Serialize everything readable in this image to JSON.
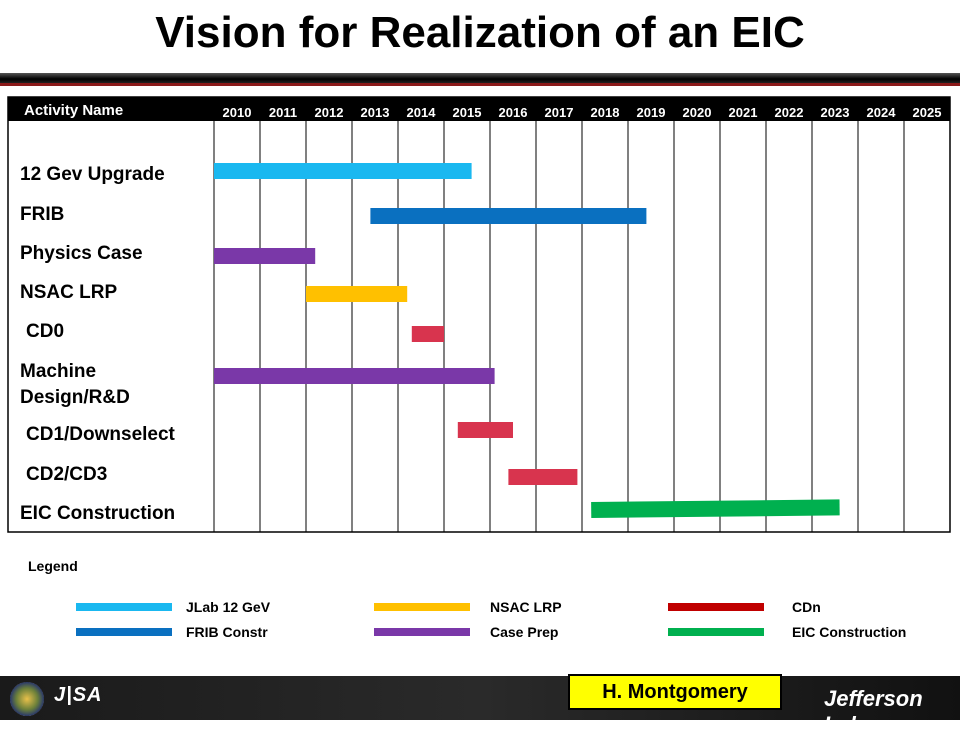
{
  "title": "Vision for Realization of an EIC",
  "author": "H. Montgomery",
  "logos": {
    "jsa": "J|SA",
    "jlab": "Jefferson Lab"
  },
  "chart_data": {
    "type": "gantt",
    "header_label": "Activity Name",
    "years": [
      "2010",
      "2011",
      "2012",
      "2013",
      "2014",
      "2015",
      "2016",
      "2017",
      "2018",
      "2019",
      "2020",
      "2021",
      "2022",
      "2023",
      "2024",
      "2025"
    ],
    "tasks": [
      {
        "name": "12 Gev Upgrade",
        "start": 2010.0,
        "end": 2015.6,
        "color": "#1ab8f0"
      },
      {
        "name": "FRIB",
        "start": 2013.4,
        "end": 2019.4,
        "color": "#0a70c0"
      },
      {
        "name": "Physics Case",
        "start": 2010.0,
        "end": 2012.2,
        "color": "#7a38a8"
      },
      {
        "name": "NSAC LRP",
        "start": 2012.0,
        "end": 2014.2,
        "color": "#ffc000"
      },
      {
        "name": "CD0",
        "start": 2014.3,
        "end": 2015.0,
        "color": "#d8344e"
      },
      {
        "name": "Machine Design/R&D",
        "start": 2010.0,
        "end": 2016.1,
        "color": "#7a38a8"
      },
      {
        "name": "CD1/Downselect",
        "start": 2015.3,
        "end": 2016.5,
        "color": "#d8344e"
      },
      {
        "name": "CD2/CD3",
        "start": 2016.4,
        "end": 2017.9,
        "color": "#d8344e"
      },
      {
        "name": "EIC Construction",
        "start": 2018.2,
        "end": 2023.6,
        "color": "#00b04f"
      }
    ],
    "legend_title": "Legend",
    "legend": [
      {
        "label": "JLab 12 GeV",
        "color": "#1ab8f0"
      },
      {
        "label": "FRIB Constr",
        "color": "#0a70c0"
      },
      {
        "label": "NSAC LRP",
        "color": "#ffc000"
      },
      {
        "label": "Case Prep",
        "color": "#7a38a8"
      },
      {
        "label": "CDn",
        "color": "#c00000"
      },
      {
        "label": "EIC Construction",
        "color": "#00b04f"
      }
    ]
  }
}
